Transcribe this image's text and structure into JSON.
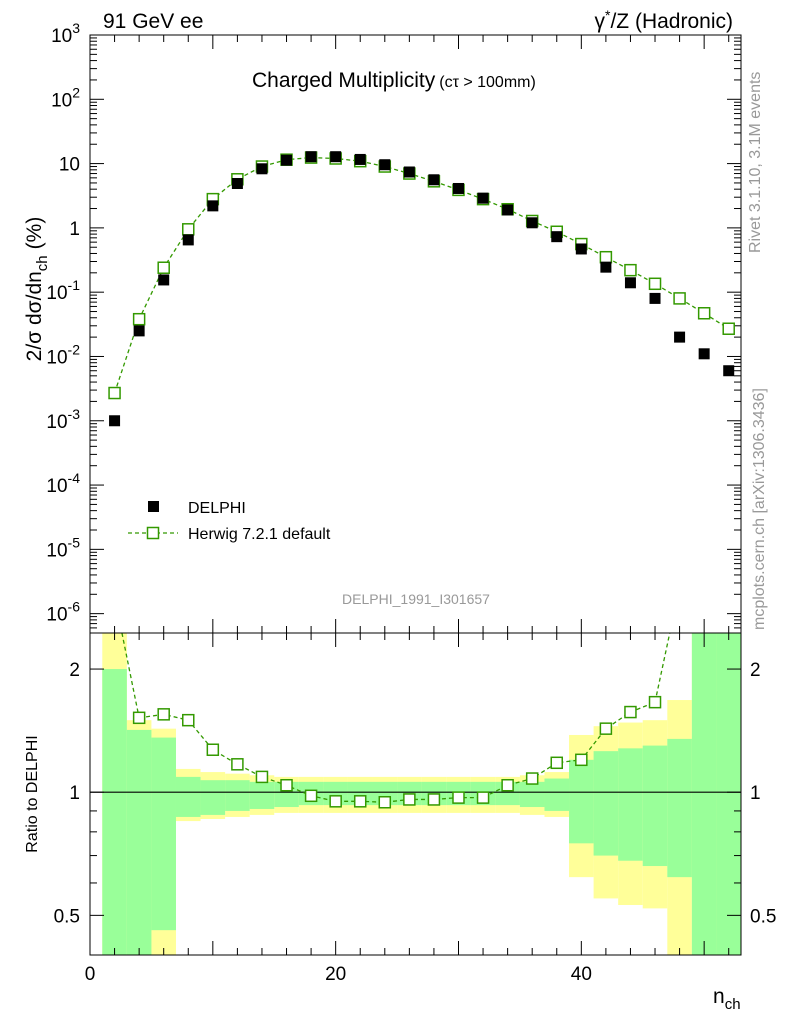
{
  "header": {
    "left_label": "91 GeV ee",
    "right_label_sup": "*",
    "right_label_main": "γ",
    "right_label_rest": "/Z (Hadronic)"
  },
  "chart_data": [
    {
      "type": "scatter",
      "title": "Charged Multiplicity",
      "subtitle": "(cτ > 100mm)",
      "analysis_label": "DELPHI_1991_I301657",
      "ylabel_main": "2/σ dσ/dn",
      "ylabel_sub": "ch",
      "ylabel_unit": "(%)",
      "yscale": "log",
      "ylim": [
        5e-07,
        1000
      ],
      "xlim": [
        0,
        53
      ],
      "y_tick_labels": [
        "10^3",
        "10^2",
        "10",
        "1",
        "10^-1",
        "10^-2",
        "10^-3",
        "10^-4",
        "10^-5",
        "10^-6"
      ],
      "legend_position": "bottom-left",
      "colors": {
        "data": "#000000",
        "mc": "#339900"
      },
      "series": [
        {
          "name": "DELPHI",
          "marker": "filled-square",
          "x": [
            2,
            4,
            6,
            8,
            10,
            12,
            14,
            16,
            18,
            20,
            22,
            24,
            26,
            28,
            30,
            32,
            34,
            36,
            38,
            40,
            42,
            44,
            46,
            48,
            50,
            52
          ],
          "y": [
            0.001,
            0.025,
            0.155,
            0.65,
            2.2,
            4.9,
            8.3,
            11.3,
            12.8,
            12.8,
            11.6,
            9.6,
            7.4,
            5.6,
            4.1,
            2.9,
            1.9,
            1.2,
            0.73,
            0.47,
            0.245,
            0.14,
            0.08,
            0.02,
            0.011,
            0.006
          ]
        },
        {
          "name": "Herwig 7.2.1 default",
          "marker": "open-square-dashed-line",
          "x": [
            2,
            4,
            6,
            8,
            10,
            12,
            14,
            16,
            18,
            20,
            22,
            24,
            26,
            28,
            30,
            32,
            34,
            36,
            38,
            40,
            42,
            44,
            46,
            48,
            50,
            52
          ],
          "y": [
            0.0027,
            0.038,
            0.24,
            0.95,
            2.8,
            5.7,
            9.0,
            11.5,
            12.4,
            12.0,
            10.9,
            9.0,
            7.0,
            5.3,
            3.9,
            2.8,
            1.95,
            1.28,
            0.87,
            0.56,
            0.35,
            0.22,
            0.135,
            0.08,
            0.047,
            0.027
          ]
        }
      ]
    },
    {
      "type": "line",
      "ylabel": "Ratio to DELPHI",
      "xlabel_main": "n",
      "xlabel_sub": "ch",
      "yscale": "log",
      "ylim": [
        0.4,
        2.45
      ],
      "xlim": [
        0,
        53
      ],
      "x_tick_labels": [
        "0",
        "20",
        "40"
      ],
      "x_ticks": [
        0,
        20,
        40
      ],
      "y_tick_labels": [
        "0.5",
        "1",
        "2"
      ],
      "y_ticks": [
        0.5,
        1,
        2
      ],
      "colors": {
        "inner_band": "#99ff99",
        "outer_band": "#ffff99",
        "mc": "#339900"
      },
      "bins": [
        1,
        3,
        5,
        7,
        9,
        11,
        13,
        15,
        17,
        19,
        21,
        23,
        25,
        27,
        29,
        31,
        33,
        35,
        37,
        39,
        41,
        43,
        45,
        47,
        49,
        51,
        53
      ],
      "inner_band": [
        [
          0.4,
          2.0
        ],
        [
          0.4,
          1.42
        ],
        [
          0.46,
          1.36
        ],
        [
          0.87,
          1.09
        ],
        [
          0.88,
          1.07
        ],
        [
          0.9,
          1.07
        ],
        [
          0.91,
          1.06
        ],
        [
          0.92,
          1.06
        ],
        [
          0.93,
          1.06
        ],
        [
          0.93,
          1.06
        ],
        [
          0.93,
          1.06
        ],
        [
          0.93,
          1.06
        ],
        [
          0.93,
          1.06
        ],
        [
          0.93,
          1.06
        ],
        [
          0.93,
          1.06
        ],
        [
          0.93,
          1.06
        ],
        [
          0.93,
          1.06
        ],
        [
          0.92,
          1.06
        ],
        [
          0.9,
          1.08
        ],
        [
          0.75,
          1.2
        ],
        [
          0.7,
          1.26
        ],
        [
          0.68,
          1.28
        ],
        [
          0.66,
          1.3
        ],
        [
          0.62,
          1.35
        ],
        [
          0.4,
          2.45
        ],
        [
          0.4,
          2.45
        ]
      ],
      "outer_band": [
        [
          0.4,
          2.45
        ],
        [
          0.4,
          1.5
        ],
        [
          0.4,
          1.43
        ],
        [
          0.85,
          1.14
        ],
        [
          0.86,
          1.12
        ],
        [
          0.87,
          1.11
        ],
        [
          0.88,
          1.1
        ],
        [
          0.89,
          1.09
        ],
        [
          0.89,
          1.09
        ],
        [
          0.89,
          1.09
        ],
        [
          0.89,
          1.09
        ],
        [
          0.89,
          1.09
        ],
        [
          0.89,
          1.09
        ],
        [
          0.89,
          1.09
        ],
        [
          0.89,
          1.09
        ],
        [
          0.89,
          1.09
        ],
        [
          0.89,
          1.09
        ],
        [
          0.88,
          1.1
        ],
        [
          0.87,
          1.12
        ],
        [
          0.62,
          1.38
        ],
        [
          0.55,
          1.45
        ],
        [
          0.53,
          1.48
        ],
        [
          0.52,
          1.5
        ],
        [
          0.4,
          1.68
        ],
        [
          0.4,
          2.45
        ],
        [
          0.4,
          2.45
        ]
      ],
      "series": [
        {
          "name": "Herwig 7.2.1 default",
          "marker": "open-square-dashed-line",
          "x": [
            2,
            4,
            6,
            8,
            10,
            12,
            14,
            16,
            18,
            20,
            22,
            24,
            26,
            28,
            30,
            32,
            34,
            36,
            38,
            40,
            42,
            44,
            46
          ],
          "y": [
            2.7,
            1.52,
            1.55,
            1.5,
            1.27,
            1.17,
            1.09,
            1.04,
            0.98,
            0.95,
            0.95,
            0.945,
            0.96,
            0.96,
            0.97,
            0.97,
            1.04,
            1.08,
            1.18,
            1.2,
            1.43,
            1.57,
            1.66
          ]
        }
      ],
      "offscale_points": [
        {
          "from_x": 2,
          "direction": "up"
        },
        {
          "from_x": 46,
          "to_x": 48,
          "direction": "up"
        }
      ]
    }
  ],
  "side_labels": {
    "rivet": "Rivet 3.1.10,  3.1M events",
    "mcplots": "mcplots.cern.ch [arXiv:1306.3436]"
  }
}
